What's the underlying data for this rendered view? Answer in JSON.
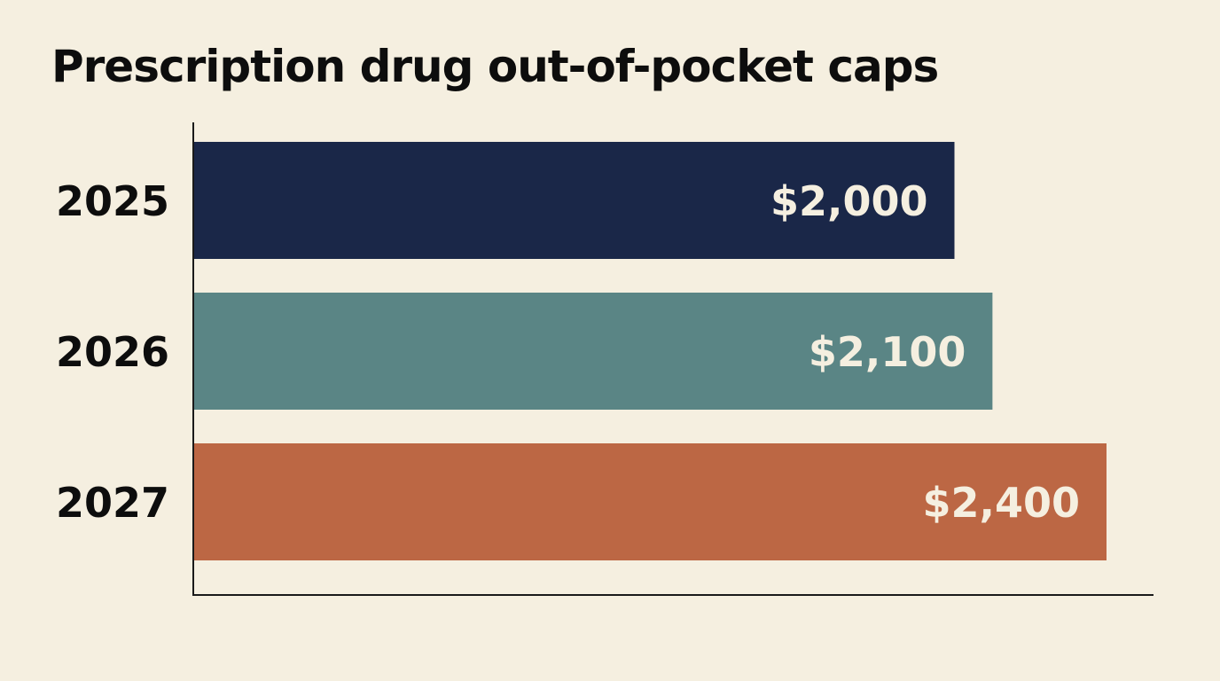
{
  "chart_data": {
    "type": "bar",
    "orientation": "horizontal",
    "title": "Prescription drug out-of-pocket caps",
    "xlabel": "",
    "ylabel": "",
    "categories": [
      "2025",
      "2026",
      "2027"
    ],
    "values": [
      2000,
      2100,
      2400
    ],
    "value_labels": [
      "$2,000",
      "$2,100",
      "$2,400"
    ],
    "xlim": [
      0,
      2520
    ],
    "grid": false,
    "legend": "none",
    "bar_colors": [
      "#1a2748",
      "#5a8585",
      "#bc6744"
    ]
  },
  "background_color": "#f5efe0"
}
